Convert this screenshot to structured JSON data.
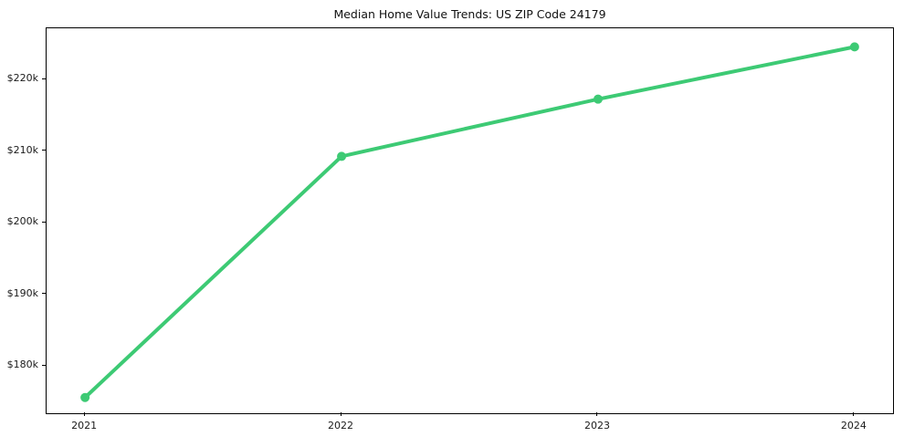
{
  "chart_data": {
    "type": "line",
    "title": "Median Home Value Trends: US ZIP Code 24179",
    "x": [
      2021,
      2022,
      2023,
      2024
    ],
    "series": [
      {
        "name": "Median home value",
        "values": [
          175600,
          209300,
          217300,
          224600
        ]
      }
    ],
    "xlabel": "",
    "ylabel": "",
    "xlim": [
      2020.85,
      2024.15
    ],
    "ylim": [
      173400,
      227200
    ],
    "xticks": [
      {
        "value": 2021,
        "label": "2021"
      },
      {
        "value": 2022,
        "label": "2022"
      },
      {
        "value": 2023,
        "label": "2023"
      },
      {
        "value": 2024,
        "label": "2024"
      }
    ],
    "yticks": [
      {
        "value": 180000,
        "label": "$180k"
      },
      {
        "value": 190000,
        "label": "$190k"
      },
      {
        "value": 200000,
        "label": "$200k"
      },
      {
        "value": 210000,
        "label": "$210k"
      },
      {
        "value": 220000,
        "label": "$220k"
      }
    ],
    "grid": false,
    "legend": "none",
    "line_color": "#3dca74",
    "marker": "circle",
    "line_width": 4,
    "marker_radius": 5,
    "axis_color": "#000000",
    "text_color": "#1a1a1a",
    "background": "#ffffff"
  }
}
